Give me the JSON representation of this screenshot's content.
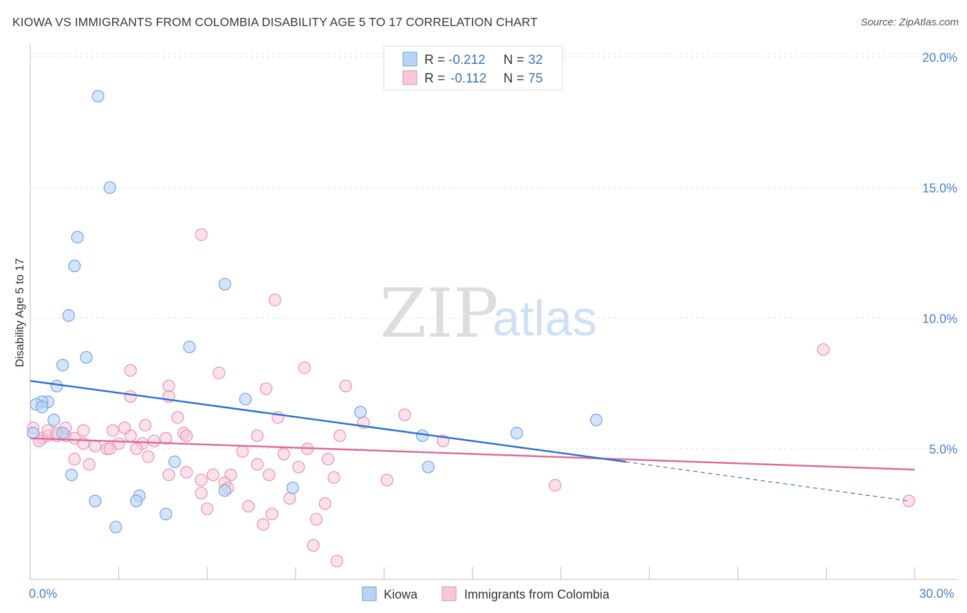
{
  "title": "KIOWA VS IMMIGRANTS FROM COLOMBIA DISABILITY AGE 5 TO 17 CORRELATION CHART",
  "source": "Source: ZipAtlas.com",
  "watermark": {
    "part1": "ZIP",
    "part2": "atlas"
  },
  "colors": {
    "kiowa_fill": "#b8d4f5",
    "kiowa_stroke": "#7aa8e0",
    "kiowa_line": "#2e6fd4",
    "colombia_fill": "#f8c8d8",
    "colombia_stroke": "#ec94b4",
    "colombia_line": "#e06898",
    "grid": "#e0e0e0",
    "tick_label": "#4a7fd0"
  },
  "legend": {
    "rows": [
      {
        "r_label": "R =",
        "r_value": "-0.212",
        "n_label": "N =",
        "n_value": "32"
      },
      {
        "r_label": "R =",
        "r_value": "-0.112",
        "n_label": "N =",
        "n_value": "75"
      }
    ]
  },
  "bottom_legend": [
    "Kiowa",
    "Immigrants from Colombia"
  ],
  "chart_data": {
    "type": "scatter",
    "title": "KIOWA VS IMMIGRANTS FROM COLOMBIA DISABILITY AGE 5 TO 17 CORRELATION CHART",
    "xlabel": "",
    "ylabel": "Disability Age 5 to 17",
    "xlim": [
      0,
      30
    ],
    "ylim": [
      0,
      20.5
    ],
    "x_ticks": [
      0,
      30
    ],
    "x_tick_labels": [
      "0.0%",
      "30.0%"
    ],
    "y_ticks": [
      5,
      10,
      15,
      20
    ],
    "y_tick_labels": [
      "5.0%",
      "10.0%",
      "15.0%",
      "20.0%"
    ],
    "grid": true,
    "legend_placement": "top-center",
    "series": [
      {
        "name": "Kiowa",
        "points": [
          [
            2.3,
            18.5
          ],
          [
            2.7,
            15.0
          ],
          [
            1.6,
            13.1
          ],
          [
            1.5,
            12.0
          ],
          [
            6.6,
            11.3
          ],
          [
            1.3,
            10.1
          ],
          [
            5.4,
            8.9
          ],
          [
            1.9,
            8.5
          ],
          [
            1.1,
            8.2
          ],
          [
            0.9,
            7.4
          ],
          [
            7.3,
            6.9
          ],
          [
            0.6,
            6.8
          ],
          [
            0.4,
            6.8
          ],
          [
            0.2,
            6.7
          ],
          [
            0.4,
            6.6
          ],
          [
            11.2,
            6.4
          ],
          [
            19.2,
            6.1
          ],
          [
            0.8,
            6.1
          ],
          [
            1.1,
            5.6
          ],
          [
            0.1,
            5.6
          ],
          [
            13.3,
            5.5
          ],
          [
            16.5,
            5.6
          ],
          [
            4.9,
            4.5
          ],
          [
            13.5,
            4.3
          ],
          [
            1.4,
            4.0
          ],
          [
            8.9,
            3.5
          ],
          [
            6.6,
            3.4
          ],
          [
            3.7,
            3.2
          ],
          [
            3.6,
            3.0
          ],
          [
            2.2,
            3.0
          ],
          [
            4.6,
            2.5
          ],
          [
            2.9,
            2.0
          ]
        ],
        "trend": {
          "x": [
            0,
            20.2
          ],
          "y": [
            7.6,
            4.5
          ]
        },
        "trend_extension": {
          "x": [
            20.2,
            29.8
          ],
          "y": [
            4.5,
            3.0
          ]
        }
      },
      {
        "name": "Immigrants from Colombia",
        "points": [
          [
            0.1,
            5.8
          ],
          [
            0.4,
            5.4
          ],
          [
            0.6,
            5.5
          ],
          [
            0.9,
            5.5
          ],
          [
            1.2,
            5.5
          ],
          [
            1.5,
            5.4
          ],
          [
            1.8,
            5.7
          ],
          [
            2.2,
            5.1
          ],
          [
            2.6,
            5.0
          ],
          [
            3.0,
            5.2
          ],
          [
            3.4,
            5.5
          ],
          [
            3.8,
            5.2
          ],
          [
            4.2,
            5.3
          ],
          [
            4.6,
            5.4
          ],
          [
            1.2,
            5.8
          ],
          [
            1.8,
            5.2
          ],
          [
            2.8,
            5.7
          ],
          [
            3.2,
            5.8
          ],
          [
            3.9,
            5.9
          ],
          [
            0.6,
            5.7
          ],
          [
            0.9,
            5.6
          ],
          [
            0.3,
            5.3
          ],
          [
            1.5,
            4.6
          ],
          [
            2.0,
            4.4
          ],
          [
            2.7,
            5.0
          ],
          [
            3.6,
            5.0
          ],
          [
            4.0,
            4.7
          ],
          [
            4.7,
            4.0
          ],
          [
            5.3,
            4.1
          ],
          [
            5.8,
            3.8
          ],
          [
            6.2,
            4.0
          ],
          [
            6.8,
            4.0
          ],
          [
            7.2,
            4.9
          ],
          [
            7.7,
            4.4
          ],
          [
            8.1,
            4.0
          ],
          [
            8.6,
            4.8
          ],
          [
            9.1,
            4.3
          ],
          [
            9.4,
            5.0
          ],
          [
            10.1,
            4.6
          ],
          [
            10.3,
            3.9
          ],
          [
            11.3,
            6.0
          ],
          [
            12.1,
            3.8
          ],
          [
            12.7,
            6.3
          ],
          [
            14.0,
            5.3
          ],
          [
            17.8,
            3.6
          ],
          [
            26.9,
            8.8
          ],
          [
            29.8,
            3.0
          ],
          [
            5.8,
            13.2
          ],
          [
            8.3,
            10.7
          ],
          [
            9.3,
            8.1
          ],
          [
            10.7,
            7.4
          ],
          [
            8.0,
            7.3
          ],
          [
            6.4,
            7.9
          ],
          [
            4.7,
            7.4
          ],
          [
            3.4,
            7.0
          ],
          [
            4.7,
            7.0
          ],
          [
            3.4,
            8.0
          ],
          [
            5.0,
            6.2
          ],
          [
            8.4,
            6.2
          ],
          [
            5.2,
            5.6
          ],
          [
            5.3,
            5.5
          ],
          [
            7.7,
            5.5
          ],
          [
            10.5,
            5.5
          ],
          [
            6.6,
            3.7
          ],
          [
            6.7,
            3.5
          ],
          [
            5.8,
            3.3
          ],
          [
            6.0,
            2.7
          ],
          [
            7.4,
            2.8
          ],
          [
            8.2,
            2.5
          ],
          [
            7.9,
            2.1
          ],
          [
            9.7,
            2.3
          ],
          [
            10.0,
            2.9
          ],
          [
            8.8,
            3.1
          ],
          [
            9.6,
            1.3
          ],
          [
            10.4,
            0.7
          ]
        ],
        "trend": {
          "x": [
            0,
            30
          ],
          "y": [
            5.4,
            4.2
          ]
        }
      }
    ]
  }
}
